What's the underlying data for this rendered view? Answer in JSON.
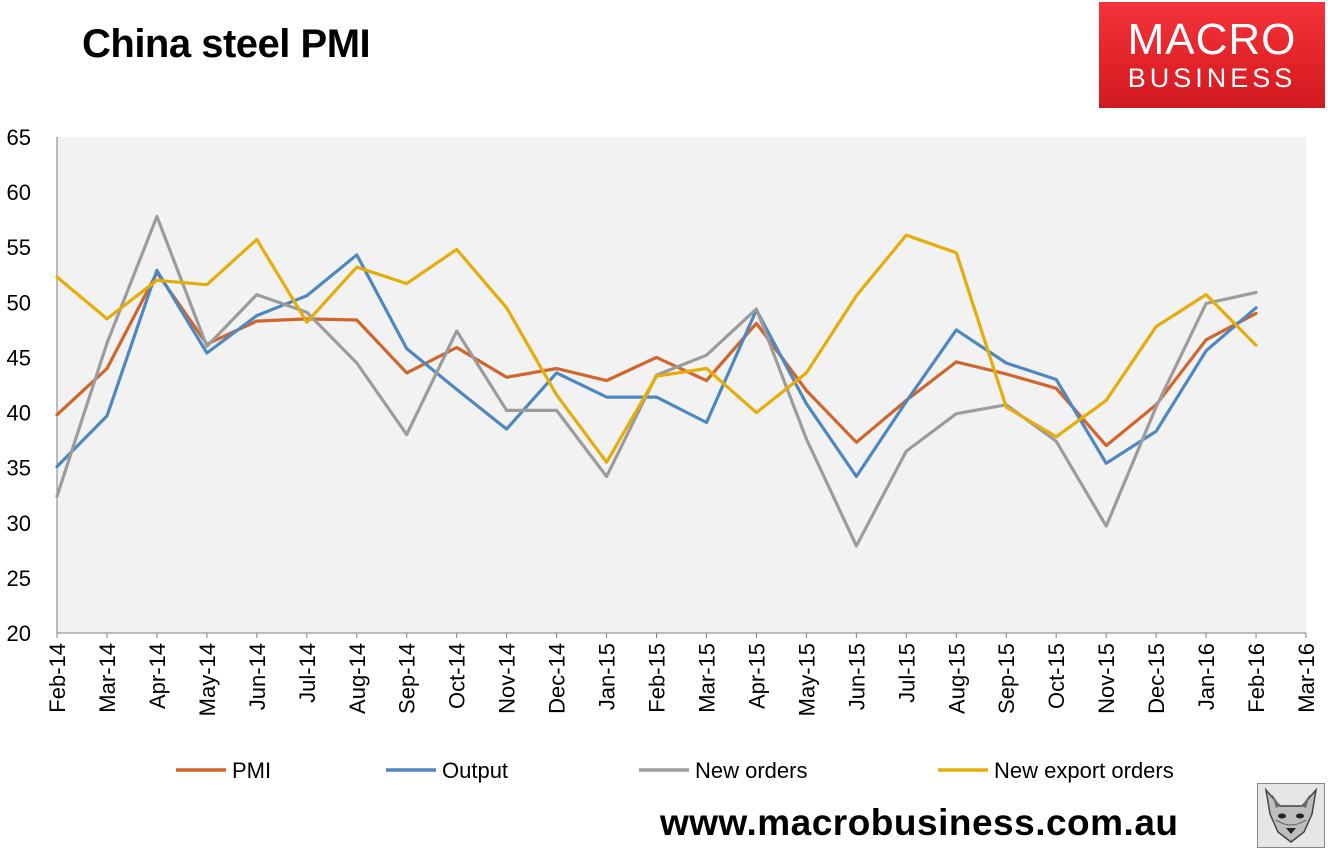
{
  "title": "China steel PMI",
  "logo": {
    "line1": "MACRO",
    "line2": "BUSINESS"
  },
  "footer_url": "www.macrobusiness.com.au",
  "colors": {
    "plot_bg": "#f2f2f2",
    "pmi": "#d0662c",
    "output": "#4f87c0",
    "new_orders": "#9c9c9c",
    "new_export_orders": "#e5ad0a",
    "logo": "#e3242a"
  },
  "chart_data": {
    "type": "line",
    "title": "China steel PMI",
    "xlabel": "",
    "ylabel": "",
    "ylim": [
      20,
      65
    ],
    "yticks": [
      20,
      25,
      30,
      35,
      40,
      45,
      50,
      55,
      60,
      65
    ],
    "grid": false,
    "legend_position": "bottom",
    "categories": [
      "Feb-14",
      "Mar-14",
      "Apr-14",
      "May-14",
      "Jun-14",
      "Jul-14",
      "Aug-14",
      "Sep-14",
      "Oct-14",
      "Nov-14",
      "Dec-14",
      "Jan-15",
      "Feb-15",
      "Mar-15",
      "Apr-15",
      "May-15",
      "Jun-15",
      "Jul-15",
      "Aug-15",
      "Sep-15",
      "Oct-15",
      "Nov-15",
      "Dec-15",
      "Jan-16",
      "Feb-16",
      "Mar-16"
    ],
    "series": [
      {
        "name": "PMI",
        "color": "#d0662c",
        "values": [
          39.8,
          44.0,
          52.7,
          46.2,
          48.3,
          48.5,
          48.4,
          43.6,
          45.9,
          43.2,
          44.0,
          42.9,
          45.0,
          42.9,
          48.1,
          42.0,
          37.3,
          41.1,
          44.6,
          43.5,
          42.2,
          37.0,
          40.7,
          46.6,
          49.0,
          null
        ]
      },
      {
        "name": "Output",
        "color": "#4f87c0",
        "values": [
          35.1,
          39.7,
          52.9,
          45.4,
          48.8,
          50.6,
          54.3,
          45.8,
          42.1,
          38.5,
          43.6,
          41.4,
          41.4,
          39.1,
          49.3,
          40.8,
          34.2,
          41.0,
          47.5,
          44.5,
          43.0,
          35.4,
          38.3,
          45.6,
          49.5,
          null
        ]
      },
      {
        "name": "New orders",
        "color": "#9c9c9c",
        "values": [
          32.4,
          46.3,
          57.8,
          46.0,
          50.7,
          49.1,
          44.5,
          38.0,
          47.4,
          40.2,
          40.2,
          34.2,
          43.4,
          45.2,
          49.4,
          37.6,
          27.9,
          36.5,
          39.9,
          40.7,
          37.4,
          29.7,
          40.5,
          49.9,
          50.9,
          null
        ]
      },
      {
        "name": "New export orders",
        "color": "#e5ad0a",
        "values": [
          52.3,
          48.5,
          52.0,
          51.6,
          55.7,
          48.2,
          53.2,
          51.7,
          54.8,
          49.5,
          41.6,
          35.5,
          43.3,
          44.0,
          40.0,
          43.6,
          50.6,
          56.1,
          54.5,
          40.5,
          37.8,
          41.1,
          47.8,
          50.7,
          46.1,
          null
        ]
      }
    ]
  }
}
